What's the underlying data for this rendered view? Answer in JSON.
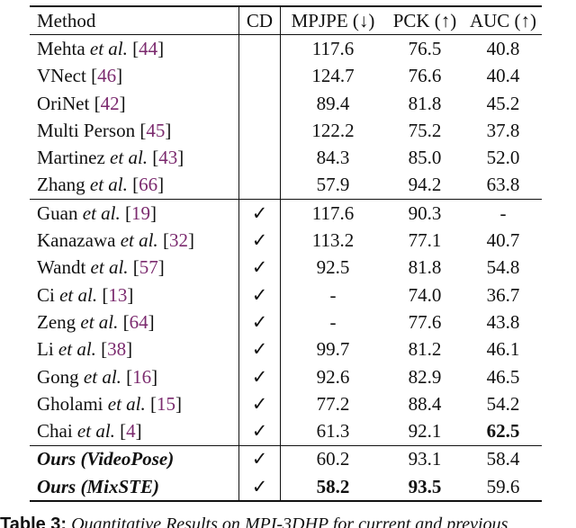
{
  "headers": {
    "method": "Method",
    "cd": "CD",
    "mpjpe": "MPJPE (↓)",
    "pck": "PCK (↑)",
    "auc": "AUC (↑)"
  },
  "rows": [
    {
      "name": "Mehta",
      "etal": true,
      "ref": "44",
      "cd": "",
      "mpjpe": "117.6",
      "pck": "76.5",
      "auc": "40.8"
    },
    {
      "name": "VNect",
      "etal": false,
      "ref": "46",
      "cd": "",
      "mpjpe": "124.7",
      "pck": "76.6",
      "auc": "40.4"
    },
    {
      "name": "OriNet",
      "etal": false,
      "ref": "42",
      "cd": "",
      "mpjpe": "89.4",
      "pck": "81.8",
      "auc": "45.2"
    },
    {
      "name": "Multi Person",
      "etal": false,
      "ref": "45",
      "cd": "",
      "mpjpe": "122.2",
      "pck": "75.2",
      "auc": "37.8"
    },
    {
      "name": "Martinez",
      "etal": true,
      "ref": "43",
      "cd": "",
      "mpjpe": "84.3",
      "pck": "85.0",
      "auc": "52.0"
    },
    {
      "name": "Zhang",
      "etal": true,
      "ref": "66",
      "cd": "",
      "mpjpe": "57.9",
      "pck": "94.2",
      "auc": "63.8"
    },
    {
      "name": "Guan",
      "etal": true,
      "ref": "19",
      "cd": "✓",
      "mpjpe": "117.6",
      "pck": "90.3",
      "auc": "-"
    },
    {
      "name": "Kanazawa",
      "etal": true,
      "ref": "32",
      "cd": "✓",
      "mpjpe": "113.2",
      "pck": "77.1",
      "auc": "40.7"
    },
    {
      "name": "Wandt",
      "etal": true,
      "ref": "57",
      "cd": "✓",
      "mpjpe": "92.5",
      "pck": "81.8",
      "auc": "54.8"
    },
    {
      "name": "Ci",
      "etal": true,
      "ref": "13",
      "cd": "✓",
      "mpjpe": "-",
      "pck": "74.0",
      "auc": "36.7"
    },
    {
      "name": "Zeng",
      "etal": true,
      "ref": "64",
      "cd": "✓",
      "mpjpe": "-",
      "pck": "77.6",
      "auc": "43.8"
    },
    {
      "name": "Li",
      "etal": true,
      "ref": "38",
      "cd": "✓",
      "mpjpe": "99.7",
      "pck": "81.2",
      "auc": "46.1"
    },
    {
      "name": "Gong",
      "etal": true,
      "ref": "16",
      "cd": "✓",
      "mpjpe": "92.6",
      "pck": "82.9",
      "auc": "46.5"
    },
    {
      "name": "Gholami",
      "etal": true,
      "ref": "15",
      "cd": "✓",
      "mpjpe": "77.2",
      "pck": "88.4",
      "auc": "54.2"
    },
    {
      "name": "Chai",
      "etal": true,
      "ref": "4",
      "cd": "✓",
      "mpjpe": "61.3",
      "pck": "92.1",
      "auc": "62.5",
      "bold_auc": true
    },
    {
      "name": "Ours (VideoPose)",
      "ours": true,
      "cd": "✓",
      "mpjpe": "60.2",
      "pck": "93.1",
      "auc": "58.4"
    },
    {
      "name": "Ours (MixSTE)",
      "ours": true,
      "cd": "✓",
      "mpjpe": "58.2",
      "pck": "93.5",
      "auc": "59.6",
      "bold_mpjpe": true,
      "bold_pck": true
    }
  ],
  "etal_text": "et al.",
  "caption": {
    "label": "Table 3:",
    "text": "Quantitative Results on MPI-3DHP for current and previous"
  }
}
